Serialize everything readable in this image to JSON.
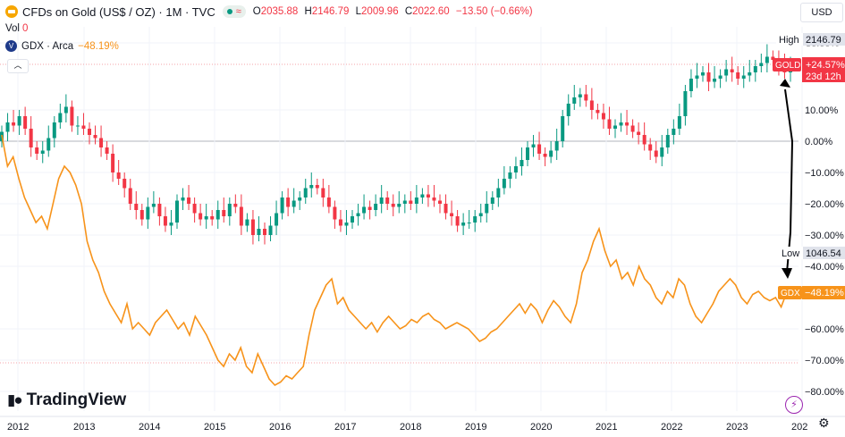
{
  "header": {
    "title": "CFDs on Gold (US$ / OZ) · 1M · TVC",
    "live_icon": "pulse-dot-icon",
    "ohlc": {
      "o_label": "O",
      "o_value": "2035.88",
      "h_label": "H",
      "h_value": "2146.79",
      "l_label": "L",
      "l_value": "2009.96",
      "c_label": "C",
      "c_value": "2022.60",
      "change": "−13.50 (−0.66%)"
    },
    "vol_label": "Vol",
    "vol_value": "0",
    "compare_symbol": "GDX · Arca",
    "compare_value": "−48.19%",
    "collapse_icon": "chevron-up-icon"
  },
  "currency_button": "USD",
  "colors": {
    "up": "#089981",
    "down": "#f23645",
    "gdx": "#f7931a",
    "grid": "#f0f3fa",
    "axis_text": "#131722",
    "zero_line": "#b2b5be"
  },
  "price_labels": {
    "high_label": "High",
    "high_value": "2146.79",
    "low_label": "Low",
    "low_value": "1046.54",
    "gold_tag": "GOLD",
    "gold_value": "+24.57%",
    "gold_countdown": "23d 12h",
    "gdx_tag": "GDX",
    "gdx_value": "−48.19%"
  },
  "watermark": "TradingView",
  "icons": {
    "logo": "tradingview-logo-icon",
    "bolt": "lightning-icon",
    "settings": "gear-icon"
  },
  "chart_data": {
    "type": "line",
    "x_axis": {
      "type": "time",
      "range": [
        "2012-01",
        "2023-12"
      ],
      "ticks": [
        "2012",
        "2013",
        "2014",
        "2015",
        "2016",
        "2017",
        "2018",
        "2019",
        "2020",
        "2021",
        "2022",
        "2023",
        "202"
      ]
    },
    "y_axis": {
      "scale": "percent",
      "range": [
        -85,
        35
      ],
      "ticks": [
        "30.00%",
        "10.00%",
        "0.00%",
        "−10.00%",
        "−20.00%",
        "−30.00%",
        "−40.00%",
        "−60.00%",
        "−70.00%",
        "−80.00%"
      ]
    },
    "series": [
      {
        "name": "GOLD",
        "style": "candles",
        "close_pct": [
          3,
          6,
          5,
          8,
          4,
          -2,
          -4,
          -3,
          1,
          6,
          9,
          11,
          5,
          5,
          4,
          2,
          1,
          -2,
          -4,
          -10,
          -12,
          -15,
          -20,
          -22,
          -25,
          -21,
          -20,
          -24,
          -27,
          -26,
          -19,
          -18,
          -20,
          -23,
          -25,
          -24,
          -25,
          -22,
          -24,
          -20,
          -21,
          -27,
          -25,
          -30,
          -28,
          -30,
          -27,
          -23,
          -18,
          -21,
          -19,
          -18,
          -15,
          -14,
          -15,
          -18,
          -21,
          -25,
          -27,
          -26,
          -24,
          -23,
          -21,
          -22,
          -20,
          -18,
          -20,
          -21,
          -20,
          -19,
          -20,
          -18,
          -17,
          -18,
          -19,
          -20,
          -23,
          -24,
          -27,
          -26,
          -26,
          -24,
          -23,
          -20,
          -18,
          -15,
          -12,
          -10,
          -8,
          -6,
          -2,
          -1,
          -4,
          -5,
          -3,
          0,
          8,
          12,
          14,
          15,
          13,
          10,
          9,
          7,
          4,
          5,
          6,
          5,
          3,
          2,
          -1,
          -3,
          -5,
          -2,
          2,
          4,
          8,
          16,
          20,
          21,
          22,
          19,
          20,
          21,
          23,
          22,
          20,
          21,
          22,
          24,
          25,
          27,
          26,
          24,
          22,
          25
        ],
        "end_pct": 24.57
      },
      {
        "name": "GDX",
        "style": "line",
        "values_pct": [
          2,
          -8,
          -5,
          -12,
          -18,
          -22,
          -26,
          -24,
          -28,
          -20,
          -12,
          -8,
          -10,
          -14,
          -20,
          -32,
          -38,
          -42,
          -48,
          -52,
          -55,
          -58,
          -52,
          -60,
          -58,
          -60,
          -62,
          -58,
          -56,
          -54,
          -57,
          -60,
          -58,
          -62,
          -56,
          -59,
          -62,
          -66,
          -70,
          -72,
          -68,
          -70,
          -66,
          -72,
          -74,
          -68,
          -72,
          -76,
          -78,
          -77,
          -75,
          -76,
          -74,
          -72,
          -62,
          -54,
          -50,
          -46,
          -44,
          -52,
          -50,
          -54,
          -56,
          -58,
          -60,
          -58,
          -61,
          -58,
          -56,
          -58,
          -60,
          -59,
          -57,
          -58,
          -56,
          -55,
          -57,
          -58,
          -60,
          -59,
          -58,
          -59,
          -60,
          -62,
          -64,
          -63,
          -61,
          -60,
          -58,
          -56,
          -54,
          -52,
          -55,
          -52,
          -54,
          -58,
          -54,
          -51,
          -53,
          -56,
          -58,
          -52,
          -42,
          -38,
          -32,
          -28,
          -35,
          -40,
          -38,
          -44,
          -42,
          -46,
          -40,
          -44,
          -46,
          -50,
          -52,
          -48,
          -50,
          -44,
          -46,
          -52,
          -56,
          -58,
          -55,
          -52,
          -48,
          -46,
          -44,
          -46,
          -50,
          -52,
          -49,
          -48,
          -50,
          -51,
          -50,
          -53,
          -48.19
        ],
        "end_pct": -48.19
      }
    ],
    "annotations": [
      "High 2146.79",
      "Low 1046.54",
      "double-headed arrow between GOLD and GDX tags"
    ]
  }
}
